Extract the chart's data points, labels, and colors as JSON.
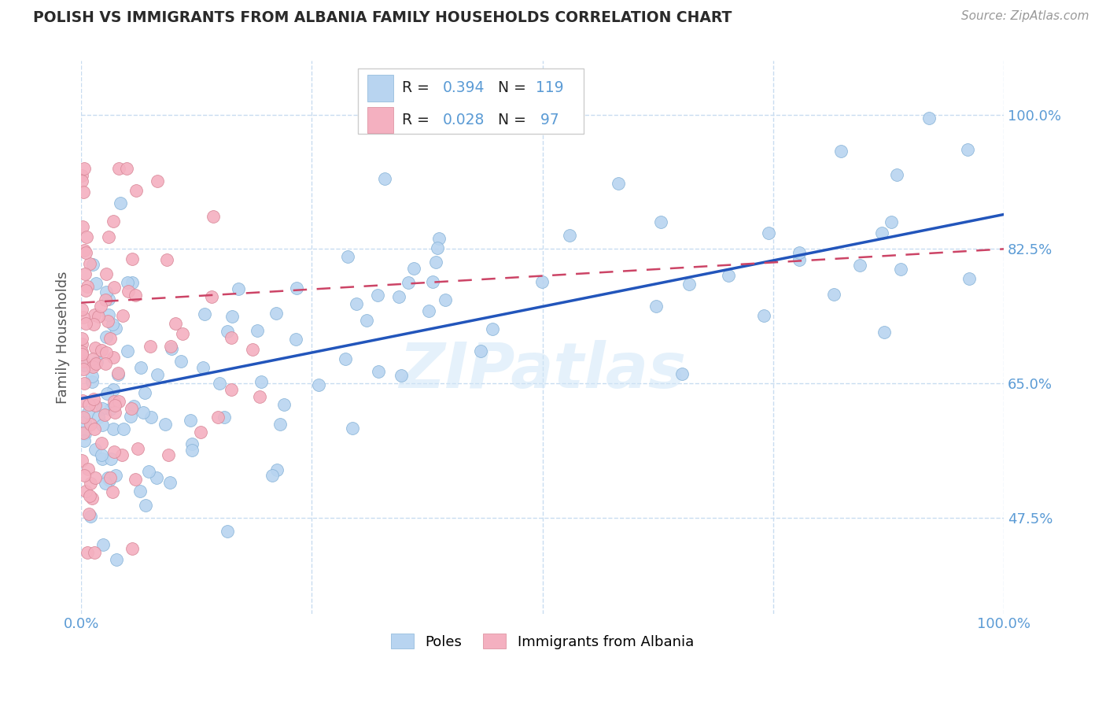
{
  "title": "POLISH VS IMMIGRANTS FROM ALBANIA FAMILY HOUSEHOLDS CORRELATION CHART",
  "source": "Source: ZipAtlas.com",
  "ylabel": "Family Households",
  "y_ticks": [
    47.5,
    65.0,
    82.5,
    100.0
  ],
  "y_tick_labels": [
    "47.5%",
    "65.0%",
    "82.5%",
    "100.0%"
  ],
  "x_ticks": [
    0,
    25,
    50,
    75,
    100
  ],
  "x_tick_labels": [
    "0.0%",
    "",
    "",
    "",
    "100.0%"
  ],
  "xlim": [
    0.0,
    100.0
  ],
  "ylim": [
    35.0,
    107.0
  ],
  "axis_color": "#5b9bd5",
  "grid_color": "#c8dcf0",
  "poles_color": "#b8d4f0",
  "poles_edge": "#88b4d8",
  "albania_color": "#f4b0c0",
  "albania_edge": "#d88898",
  "reg_poles_color": "#2255bb",
  "reg_albania_color": "#cc4466",
  "reg_poles_start_y": 63.0,
  "reg_poles_end_y": 87.0,
  "reg_albania_start_y": 75.5,
  "reg_albania_end_y": 82.5,
  "legend_label_poles": "Poles",
  "legend_label_albania": "Immigrants from Albania",
  "watermark": "ZIPatlas"
}
